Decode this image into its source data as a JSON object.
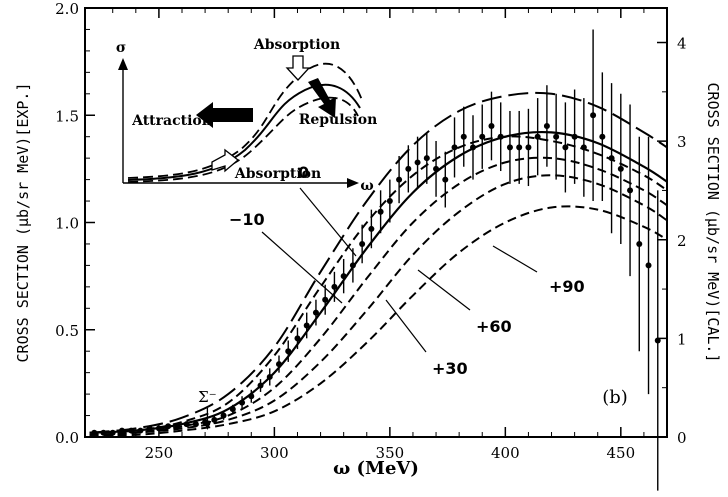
{
  "chart_data": {
    "type": "line",
    "panel_label": "(b)",
    "xlabel": "ω (MeV)",
    "ylabel_left": "CROSS SECTION (μb/sr MeV)[EXP.]",
    "ylabel_right": "CROSS SECTION (μb/sr MeV)[CAL.]",
    "xlim": [
      218,
      470
    ],
    "ylim_left": [
      0,
      2.0
    ],
    "ylim_right": [
      0,
      4.35
    ],
    "x_ticks": [
      250,
      300,
      350,
      400,
      450
    ],
    "x_tick_labels": [
      "250",
      "300",
      "350",
      "400",
      "450"
    ],
    "y_left_ticks": [
      0,
      0.5,
      1.0,
      1.5,
      2.0
    ],
    "y_left_tick_labels": [
      "0.0",
      "0.5",
      "1.0",
      "1.5",
      "2.0"
    ],
    "y_right_ticks": [
      0,
      1,
      2,
      3,
      4
    ],
    "y_right_tick_labels": [
      "0",
      "1",
      "2",
      "3",
      "4"
    ],
    "threshold": {
      "label": "Σ⁻",
      "x": 271
    },
    "series": [
      {
        "name": "-10",
        "style": "short-dash",
        "x": [
          220,
          240,
          260,
          280,
          300,
          320,
          340,
          360,
          380,
          400,
          420,
          440,
          460,
          470
        ],
        "y": [
          0.02,
          0.03,
          0.07,
          0.16,
          0.38,
          0.7,
          1.0,
          1.22,
          1.35,
          1.4,
          1.38,
          1.32,
          1.22,
          1.15
        ]
      },
      {
        "name": "0",
        "style": "solid",
        "x": [
          220,
          240,
          260,
          280,
          300,
          320,
          340,
          360,
          380,
          400,
          420,
          440,
          460,
          470
        ],
        "y": [
          0.02,
          0.03,
          0.06,
          0.13,
          0.3,
          0.58,
          0.88,
          1.14,
          1.31,
          1.4,
          1.42,
          1.37,
          1.26,
          1.19
        ]
      },
      {
        "name": "+30",
        "style": "short-dash",
        "x": [
          220,
          240,
          260,
          280,
          300,
          320,
          340,
          360,
          380,
          400,
          420,
          440,
          460,
          470
        ],
        "y": [
          0.01,
          0.02,
          0.05,
          0.1,
          0.23,
          0.46,
          0.74,
          1.0,
          1.18,
          1.28,
          1.3,
          1.25,
          1.15,
          1.08
        ]
      },
      {
        "name": "+60",
        "style": "short-dash",
        "x": [
          220,
          240,
          260,
          280,
          300,
          320,
          340,
          360,
          380,
          400,
          420,
          440,
          460,
          470
        ],
        "y": [
          0.01,
          0.02,
          0.04,
          0.08,
          0.17,
          0.35,
          0.59,
          0.85,
          1.05,
          1.18,
          1.22,
          1.18,
          1.08,
          1.01
        ]
      },
      {
        "name": "+90",
        "style": "short-dash",
        "x": [
          220,
          240,
          260,
          280,
          300,
          320,
          340,
          360,
          380,
          400,
          420,
          440,
          460,
          470
        ],
        "y": [
          0.01,
          0.01,
          0.03,
          0.06,
          0.12,
          0.25,
          0.44,
          0.66,
          0.86,
          1.0,
          1.07,
          1.06,
          0.98,
          0.92
        ]
      },
      {
        "name": "",
        "style": "long-dash",
        "x": [
          220,
          240,
          260,
          280,
          300,
          320,
          340,
          360,
          380,
          400,
          420,
          440,
          460,
          470
        ],
        "y": [
          0.02,
          0.04,
          0.09,
          0.2,
          0.42,
          0.77,
          1.1,
          1.36,
          1.52,
          1.59,
          1.6,
          1.54,
          1.42,
          1.35
        ]
      }
    ],
    "data_points": {
      "x": [
        222,
        226,
        230,
        234,
        238,
        242,
        246,
        250,
        254,
        258,
        262,
        266,
        270,
        274,
        278,
        282,
        286,
        290,
        294,
        298,
        302,
        306,
        310,
        314,
        318,
        322,
        326,
        330,
        334,
        338,
        342,
        346,
        350,
        354,
        358,
        362,
        366,
        370,
        374,
        378,
        382,
        386,
        390,
        394,
        398,
        402,
        406,
        410,
        414,
        418,
        422,
        426,
        430,
        434,
        438,
        442,
        446,
        450,
        454,
        458,
        462,
        466
      ],
      "y": [
        0.02,
        0.02,
        0.02,
        0.03,
        0.03,
        0.03,
        0.04,
        0.04,
        0.05,
        0.05,
        0.06,
        0.06,
        0.07,
        0.08,
        0.1,
        0.13,
        0.16,
        0.19,
        0.24,
        0.28,
        0.34,
        0.4,
        0.46,
        0.52,
        0.58,
        0.64,
        0.7,
        0.75,
        0.8,
        0.9,
        0.97,
        1.05,
        1.1,
        1.2,
        1.25,
        1.28,
        1.3,
        1.25,
        1.2,
        1.35,
        1.4,
        1.35,
        1.4,
        1.45,
        1.4,
        1.35,
        1.35,
        1.35,
        1.4,
        1.45,
        1.4,
        1.35,
        1.4,
        1.35,
        1.5,
        1.4,
        1.3,
        1.25,
        1.15,
        0.9,
        0.8,
        0.45
      ],
      "err": [
        0.01,
        0.01,
        0.01,
        0.01,
        0.01,
        0.01,
        0.01,
        0.01,
        0.01,
        0.01,
        0.01,
        0.01,
        0.02,
        0.02,
        0.02,
        0.02,
        0.03,
        0.03,
        0.03,
        0.04,
        0.04,
        0.05,
        0.05,
        0.06,
        0.06,
        0.07,
        0.07,
        0.08,
        0.08,
        0.09,
        0.09,
        0.1,
        0.1,
        0.11,
        0.11,
        0.12,
        0.12,
        0.13,
        0.13,
        0.14,
        0.14,
        0.15,
        0.15,
        0.16,
        0.16,
        0.17,
        0.17,
        0.18,
        0.18,
        0.19,
        0.2,
        0.21,
        0.22,
        0.23,
        0.4,
        0.3,
        0.35,
        0.35,
        0.4,
        0.5,
        0.6,
        0.7
      ]
    },
    "inset": {
      "y_axis_label": "σ",
      "x_axis_label": "ω",
      "labels": [
        "Absorption",
        "Attraction",
        "Repulsion",
        "Absorption"
      ]
    }
  }
}
